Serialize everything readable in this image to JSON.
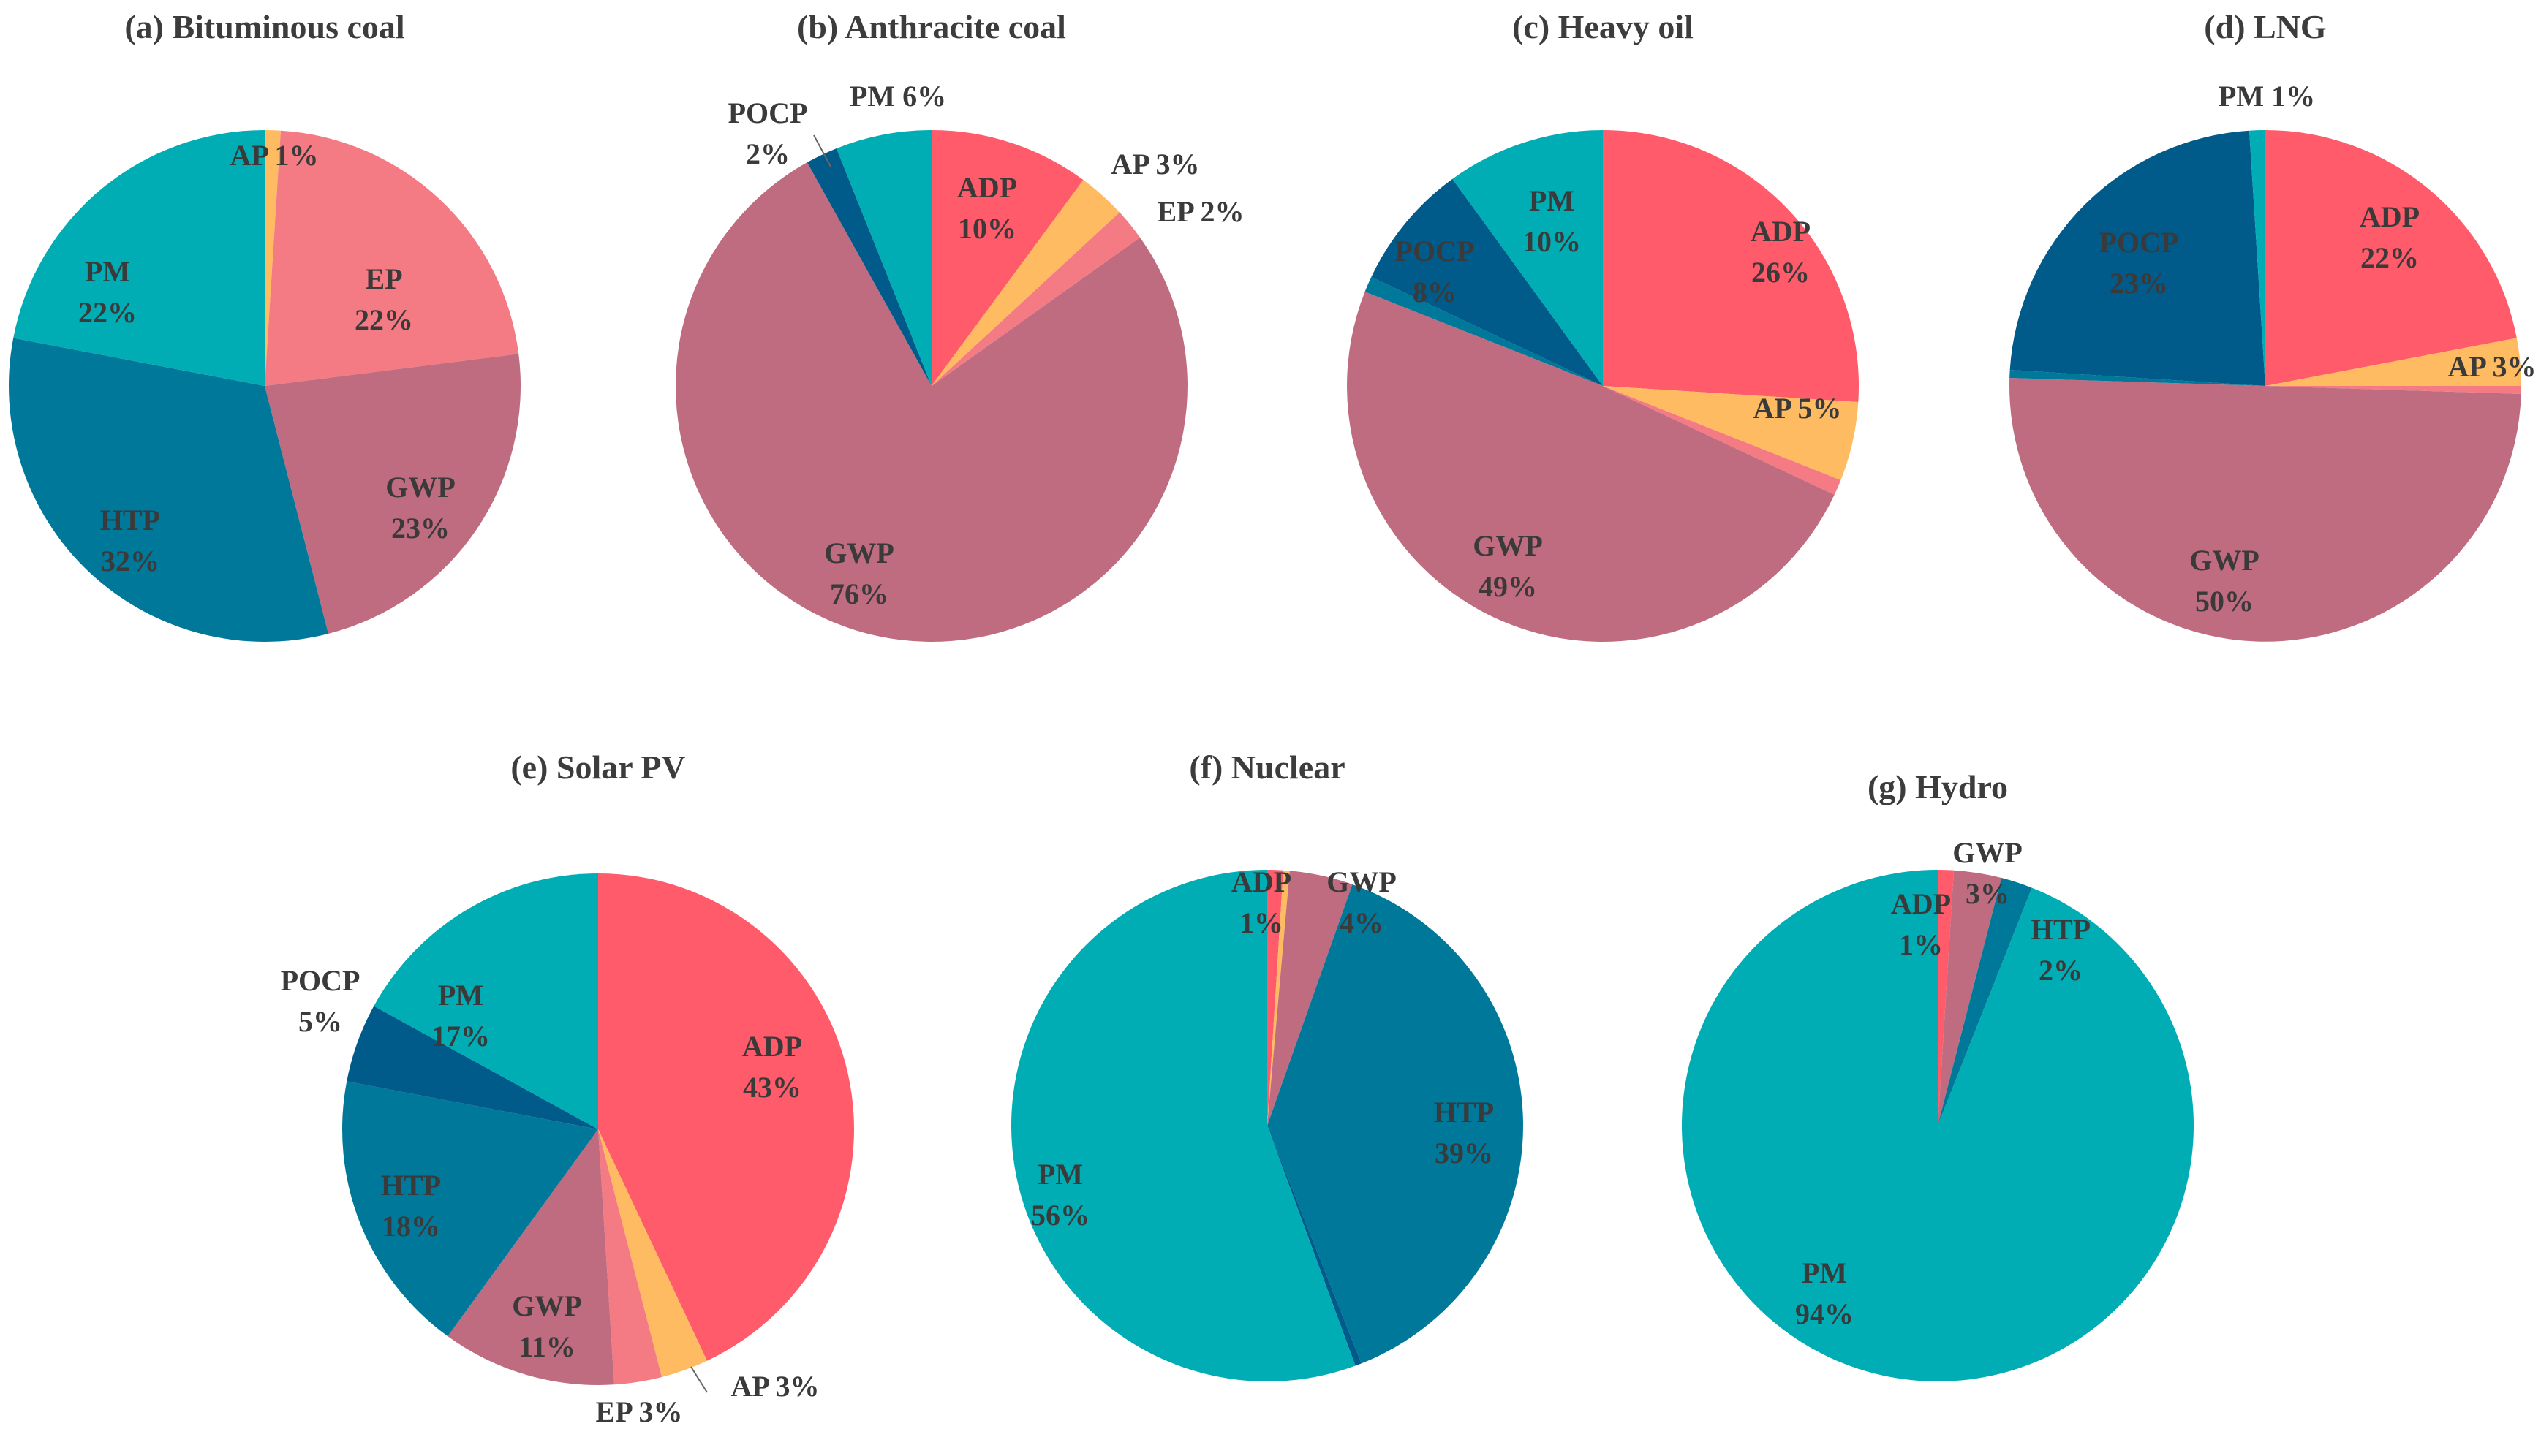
{
  "colors": {
    "ADP": "#ff5b6b",
    "AP": "#ffbb62",
    "EP": "#f47a84",
    "GWP": "#c06c80",
    "HTP": "#00789a",
    "POCP": "#005b8a",
    "PM": "#00adb5"
  },
  "chart_data": [
    {
      "type": "pie",
      "title": "(a) Bituminous coal",
      "slices": [
        {
          "name": "AP",
          "value": 1,
          "text": "AP 1%"
        },
        {
          "name": "EP",
          "value": 22,
          "text": [
            "EP",
            "22%"
          ]
        },
        {
          "name": "GWP",
          "value": 23,
          "text": [
            "GWP",
            "23%"
          ]
        },
        {
          "name": "HTP",
          "value": 32,
          "text": [
            "HTP",
            "32%"
          ]
        },
        {
          "name": "PM",
          "value": 22,
          "text": [
            "PM",
            "22%"
          ]
        }
      ]
    },
    {
      "type": "pie",
      "title": "(b) Anthracite coal",
      "slices": [
        {
          "name": "ADP",
          "value": 10,
          "text": [
            "ADP",
            "10%"
          ]
        },
        {
          "name": "AP",
          "value": 3,
          "text": "AP 3%"
        },
        {
          "name": "EP",
          "value": 2,
          "text": "EP 2%"
        },
        {
          "name": "GWP",
          "value": 76,
          "text": [
            "GWP",
            "76%"
          ]
        },
        {
          "name": "POCP",
          "value": 2,
          "text": [
            "POCP",
            "2%"
          ]
        },
        {
          "name": "PM",
          "value": 6,
          "text": "PM 6%"
        }
      ]
    },
    {
      "type": "pie",
      "title": "(c) Heavy oil",
      "slices": [
        {
          "name": "ADP",
          "value": 26,
          "text": [
            "ADP",
            "26%"
          ]
        },
        {
          "name": "AP",
          "value": 5,
          "text": "AP 5%"
        },
        {
          "name": "EP",
          "value": 1,
          "text": null
        },
        {
          "name": "GWP",
          "value": 49,
          "text": [
            "GWP",
            "49%"
          ]
        },
        {
          "name": "HTP",
          "value": 1,
          "text": null
        },
        {
          "name": "POCP",
          "value": 8,
          "text": [
            "POCP",
            "8%"
          ]
        },
        {
          "name": "PM",
          "value": 10,
          "text": [
            "PM",
            "10%"
          ]
        }
      ]
    },
    {
      "type": "pie",
      "title": "(d) LNG",
      "slices": [
        {
          "name": "ADP",
          "value": 22,
          "text": [
            "ADP",
            "22%"
          ]
        },
        {
          "name": "AP",
          "value": 3,
          "text": "AP 3%"
        },
        {
          "name": "EP",
          "value": 0.5,
          "text": null
        },
        {
          "name": "GWP",
          "value": 50,
          "text": [
            "GWP",
            "50%"
          ]
        },
        {
          "name": "HTP",
          "value": 0.5,
          "text": null
        },
        {
          "name": "POCP",
          "value": 23,
          "text": [
            "POCP",
            "23%"
          ]
        },
        {
          "name": "PM",
          "value": 1,
          "text": "PM 1%"
        }
      ]
    },
    {
      "type": "pie",
      "title": "(e) Solar PV",
      "slices": [
        {
          "name": "ADP",
          "value": 43,
          "text": [
            "ADP",
            "43%"
          ]
        },
        {
          "name": "AP",
          "value": 3,
          "text": "AP 3%"
        },
        {
          "name": "EP",
          "value": 3,
          "text": "EP 3%"
        },
        {
          "name": "GWP",
          "value": 11,
          "text": [
            "GWP",
            "11%"
          ]
        },
        {
          "name": "HTP",
          "value": 18,
          "text": [
            "HTP",
            "18%"
          ]
        },
        {
          "name": "POCP",
          "value": 5,
          "text": [
            "POCP",
            "5%"
          ]
        },
        {
          "name": "PM",
          "value": 17,
          "text": [
            "PM",
            "17%"
          ]
        }
      ]
    },
    {
      "type": "pie",
      "title": "(f) Nuclear",
      "slices": [
        {
          "name": "ADP",
          "value": 1,
          "text": [
            "ADP",
            "1%"
          ]
        },
        {
          "name": "AP",
          "value": 0.4,
          "text": null
        },
        {
          "name": "GWP",
          "value": 4,
          "text": [
            "GWP",
            "4%"
          ]
        },
        {
          "name": "HTP",
          "value": 38.6,
          "text": [
            "HTP",
            "39%"
          ]
        },
        {
          "name": "POCP",
          "value": 0.4,
          "text": null
        },
        {
          "name": "PM",
          "value": 55.6,
          "text": [
            "PM",
            "56%"
          ]
        }
      ]
    },
    {
      "type": "pie",
      "title": "(g) Hydro",
      "slices": [
        {
          "name": "ADP",
          "value": 1,
          "text": [
            "ADP",
            "1%"
          ]
        },
        {
          "name": "GWP",
          "value": 3,
          "text": [
            "GWP",
            "3%"
          ]
        },
        {
          "name": "HTP",
          "value": 2,
          "text": [
            "HTP",
            "2%"
          ]
        },
        {
          "name": "PM",
          "value": 94,
          "text": [
            "PM",
            "94%"
          ]
        }
      ]
    }
  ]
}
